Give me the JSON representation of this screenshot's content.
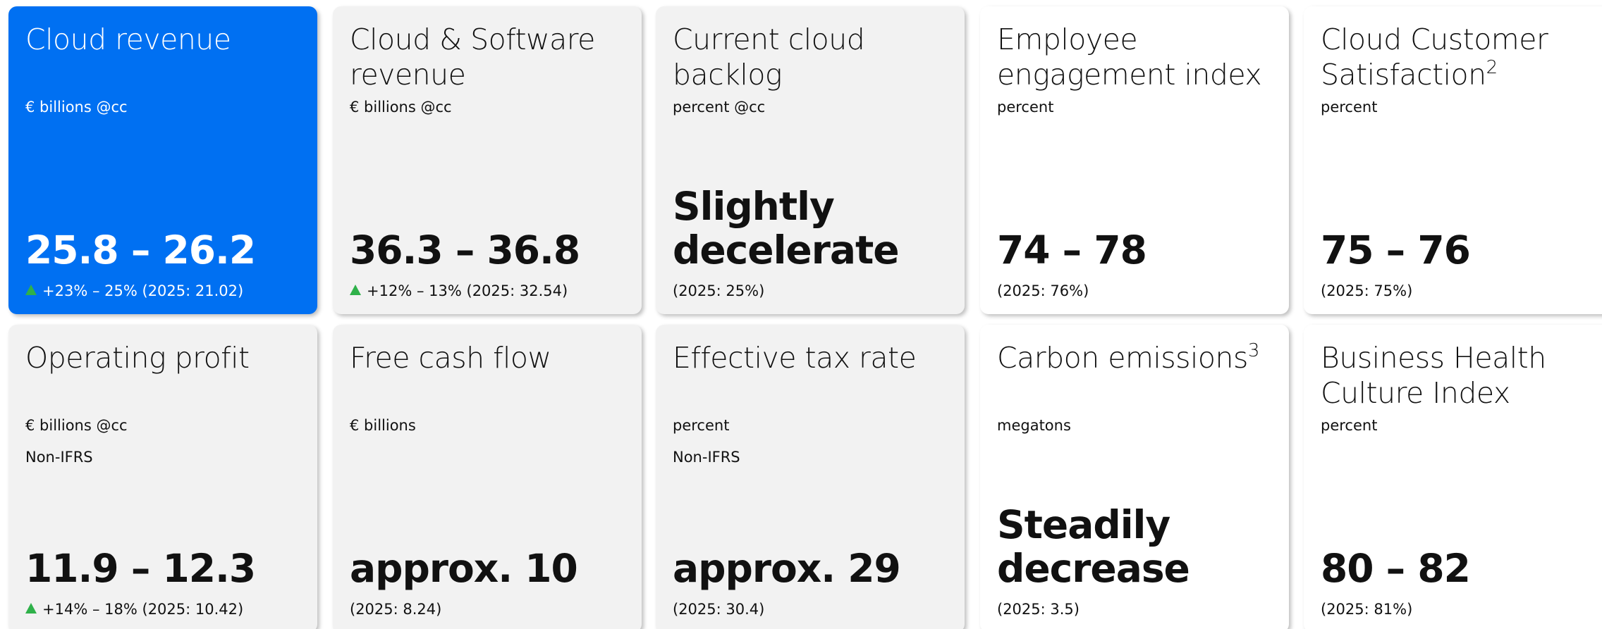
{
  "cards": [
    {
      "title": "Cloud revenue",
      "subtitle": [
        "€ billions @cc"
      ],
      "value": "25.8 – 26.2",
      "change": "+23% – 25%",
      "note": "(2025: 21.02)",
      "style": "blue"
    },
    {
      "title": "Cloud & Software revenue",
      "subtitle": [
        "€ billions @cc"
      ],
      "value": "36.3 – 36.8",
      "change": "+12% – 13%",
      "note": "(2025: 32.54)",
      "style": "grey"
    },
    {
      "title": "Current cloud backlog",
      "subtitle": [
        "percent @cc"
      ],
      "value": "Slightly decelerate",
      "note": "(2025: 25%)",
      "style": "grey"
    },
    {
      "title": "Employee engagement index",
      "subtitle": [
        "percent"
      ],
      "value": "74 – 78",
      "note": "(2025: 76%)",
      "style": "white"
    },
    {
      "title": "Cloud Customer Satisfaction",
      "sup": "2",
      "subtitle": [
        "percent"
      ],
      "value": "75 – 76",
      "note": "(2025: 75%)",
      "style": "white"
    },
    {
      "title": "Operating profit",
      "subtitle": [
        "€ billions @cc",
        "Non-IFRS"
      ],
      "value": "11.9 – 12.3",
      "change": "+14% – 18%",
      "note": "(2025: 10.42)",
      "style": "grey"
    },
    {
      "title": "Free cash flow",
      "subtitle": [
        "€ billions"
      ],
      "value": "approx. 10",
      "note": "(2025: 8.24)",
      "style": "grey"
    },
    {
      "title": "Effective tax rate",
      "subtitle": [
        "percent",
        "Non-IFRS"
      ],
      "value": "approx. 29",
      "note": "(2025: 30.4)",
      "style": "grey"
    },
    {
      "title": "Carbon emissions",
      "sup": "3",
      "subtitle": [
        "megatons"
      ],
      "value": "Steadily decrease",
      "note": "(2025: 3.5)",
      "style": "white"
    },
    {
      "title": "Business Health Culture Index",
      "subtitle": [
        "percent"
      ],
      "value": "80 – 82",
      "note": "(2025: 81%)",
      "style": "white"
    }
  ]
}
